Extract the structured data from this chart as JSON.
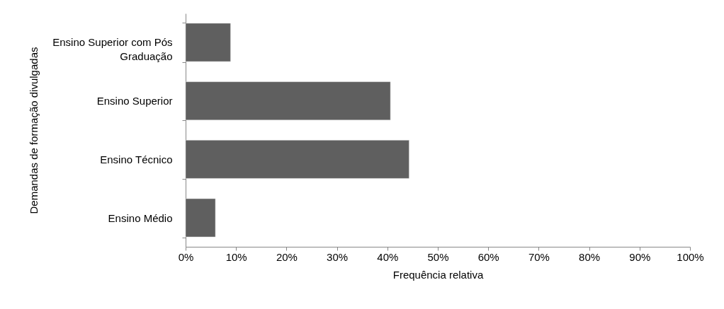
{
  "chart_data": {
    "type": "bar",
    "orientation": "horizontal",
    "xlabel": "Frequência relativa",
    "ylabel": "Demandas de formação divulgadas",
    "categories": [
      "Ensino Superior com Pós Graduação",
      "Ensino Superior",
      "Ensino Técnico",
      "Ensino Médio"
    ],
    "values": [
      8.9,
      40.6,
      44.3,
      5.9
    ],
    "color": "#5f5f5f",
    "xlim": [
      0,
      100
    ],
    "xticks": [
      {
        "value": 0,
        "label": "0%"
      },
      {
        "value": 10,
        "label": "10%"
      },
      {
        "value": 20,
        "label": "20%"
      },
      {
        "value": 30,
        "label": "30%"
      },
      {
        "value": 40,
        "label": "40%"
      },
      {
        "value": 50,
        "label": "50%"
      },
      {
        "value": 60,
        "label": "60%"
      },
      {
        "value": 70,
        "label": "70%"
      },
      {
        "value": 80,
        "label": "80%"
      },
      {
        "value": 90,
        "label": "90%"
      },
      {
        "value": 100,
        "label": "100%"
      }
    ],
    "grid": false
  }
}
